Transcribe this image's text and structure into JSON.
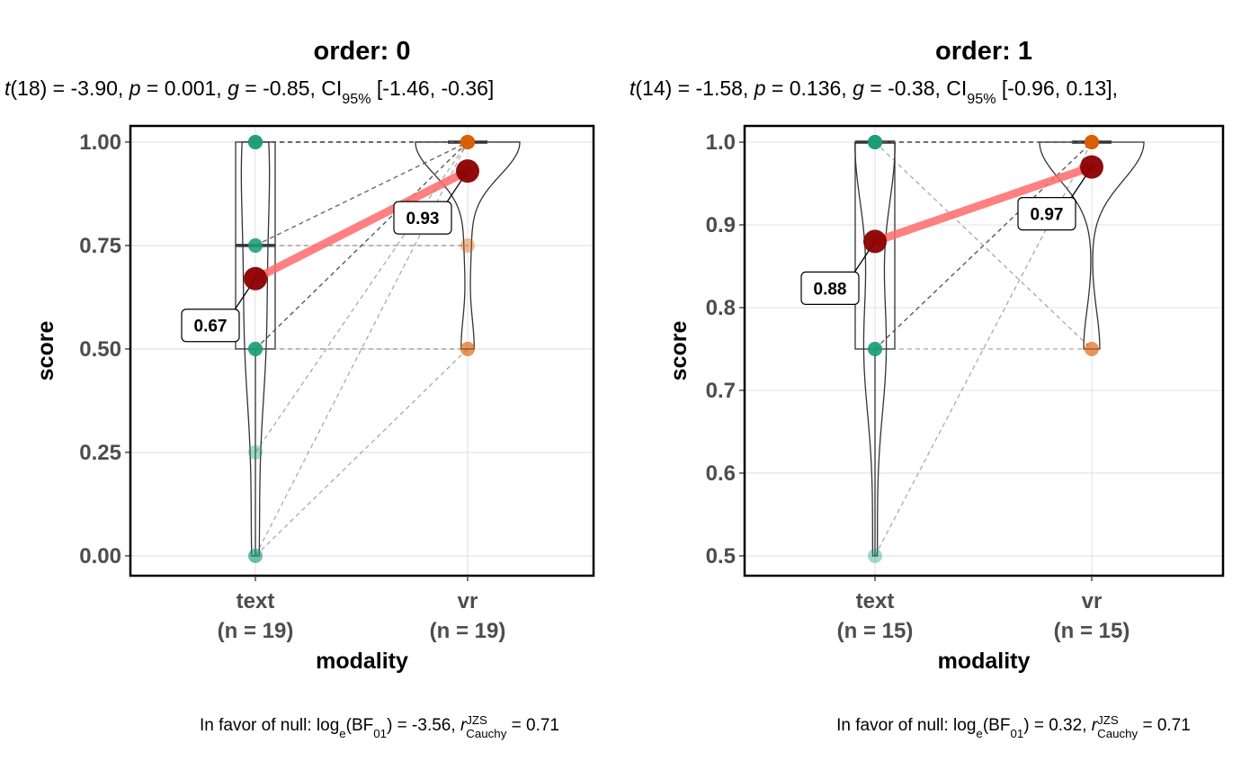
{
  "chart_data": [
    {
      "type": "paired-violin",
      "title": "order: 0",
      "subtitle": [
        {
          "text": "t",
          "italic": true
        },
        {
          "text": "(18) = -3.90, "
        },
        {
          "text": "p",
          "italic": true
        },
        {
          "text": " = 0.001, "
        },
        {
          "text": "g",
          "italic": true
        },
        {
          "text": " = -0.85, CI"
        },
        {
          "text": "95%",
          "sub": true
        },
        {
          "text": " [-1.46, -0.36]"
        }
      ],
      "x_label": "modality",
      "y_label": "score",
      "ylim": [
        -0.048,
        1.039
      ],
      "yticks": [
        {
          "value": 0,
          "label": "0.00"
        },
        {
          "value": 0.25,
          "label": "0.25"
        },
        {
          "value": 0.5,
          "label": "0.50"
        },
        {
          "value": 0.75,
          "label": "0.75"
        },
        {
          "value": 1,
          "label": "1.00"
        }
      ],
      "grid": true,
      "groups": [
        {
          "label": "text",
          "n_label": "(n = 19)",
          "color": "#1b9e77",
          "values": [
            1,
            1,
            1,
            1,
            1,
            1,
            1,
            0.75,
            0.75,
            0.75,
            0.75,
            0.5,
            0.5,
            0.5,
            0.5,
            0.5,
            0.25,
            0,
            0
          ],
          "mean": 0.67,
          "box": {
            "lower": 0,
            "q1": 0.5,
            "median": 0.75,
            "q3": 1,
            "upper": 1
          }
        },
        {
          "label": "vr",
          "n_label": "(n = 19)",
          "color": "#d95f02",
          "values": [
            1,
            1,
            1,
            1,
            1,
            1,
            1,
            1,
            1,
            1,
            0.75,
            1,
            1,
            0.5,
            1,
            1,
            1,
            1,
            0.5
          ],
          "mean": 0.93,
          "box": {
            "lower": 1,
            "q1": 1,
            "median": 1,
            "q3": 1,
            "upper": 1
          }
        }
      ],
      "mean_color": "#8b0000",
      "mean_line_color": "#ff6b6b",
      "caption": [
        {
          "text": "In favor of null: log"
        },
        {
          "text": "e",
          "sub": true
        },
        {
          "text": "(BF"
        },
        {
          "text": "01",
          "sub": true
        },
        {
          "text": ") = -3.56, "
        },
        {
          "text": "r",
          "italic": true
        },
        {
          "text": "JZS",
          "sup": true
        },
        {
          "text": "Cauchy",
          "sub": true
        },
        {
          "text": " = 0.71"
        }
      ]
    },
    {
      "type": "paired-violin",
      "title": "order: 1",
      "subtitle": [
        {
          "text": "t",
          "italic": true
        },
        {
          "text": "(14) = -1.58, "
        },
        {
          "text": "p",
          "italic": true
        },
        {
          "text": " = 0.136, "
        },
        {
          "text": "g",
          "italic": true
        },
        {
          "text": " = -0.38, CI"
        },
        {
          "text": "95%",
          "sub": true
        },
        {
          "text": " [-0.96, 0.13],"
        }
      ],
      "x_label": "modality",
      "y_label": "score",
      "ylim": [
        0.476,
        1.0196
      ],
      "yticks": [
        0.5,
        0.6,
        0.7,
        0.8,
        0.9,
        {
          "value": 1,
          "label": "1.0"
        }
      ],
      "grid": true,
      "groups": [
        {
          "label": "text",
          "n_label": "(n = 15)",
          "color": "#1b9e77",
          "values": [
            1,
            1,
            1,
            1,
            1,
            1,
            1,
            1,
            1,
            0.75,
            0.75,
            0.75,
            0.75,
            0.75,
            0.5
          ],
          "mean": 0.88,
          "box": {
            "lower": 0.5,
            "q1": 0.75,
            "median": 1,
            "q3": 1,
            "upper": 1
          }
        },
        {
          "label": "vr",
          "n_label": "(n = 15)",
          "color": "#d95f02",
          "values": [
            1,
            1,
            1,
            1,
            1,
            1,
            1,
            1,
            0.75,
            1,
            1,
            1,
            1,
            0.75,
            1
          ],
          "mean": 0.97,
          "box": {
            "lower": 1,
            "q1": 1,
            "median": 1,
            "q3": 1,
            "upper": 1
          }
        }
      ],
      "mean_color": "#8b0000",
      "mean_line_color": "#ff6b6b",
      "caption": [
        {
          "text": "In favor of null: log"
        },
        {
          "text": "e",
          "sub": true
        },
        {
          "text": "(BF"
        },
        {
          "text": "01",
          "sub": true
        },
        {
          "text": ") = 0.32, "
        },
        {
          "text": "r",
          "italic": true
        },
        {
          "text": "JZS",
          "sup": true
        },
        {
          "text": "Cauchy",
          "sub": true
        },
        {
          "text": " = 0.71"
        }
      ]
    }
  ]
}
